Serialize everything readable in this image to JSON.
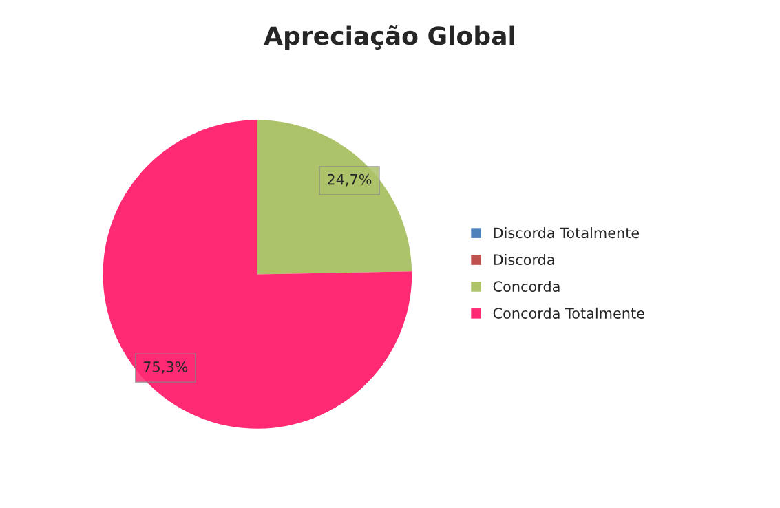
{
  "chart_data": {
    "type": "pie",
    "title": "Apreciação Global",
    "categories": [
      "Discorda Totalmente",
      "Discorda",
      "Concorda",
      "Concorda Totalmente"
    ],
    "values": [
      0,
      0,
      24.7,
      75.3
    ],
    "colors": [
      "#4f81bd",
      "#c0504d",
      "#acc36a",
      "#ff2a73"
    ],
    "value_labels": [
      null,
      null,
      "24,7%",
      "75,3%"
    ],
    "legend": "right"
  }
}
